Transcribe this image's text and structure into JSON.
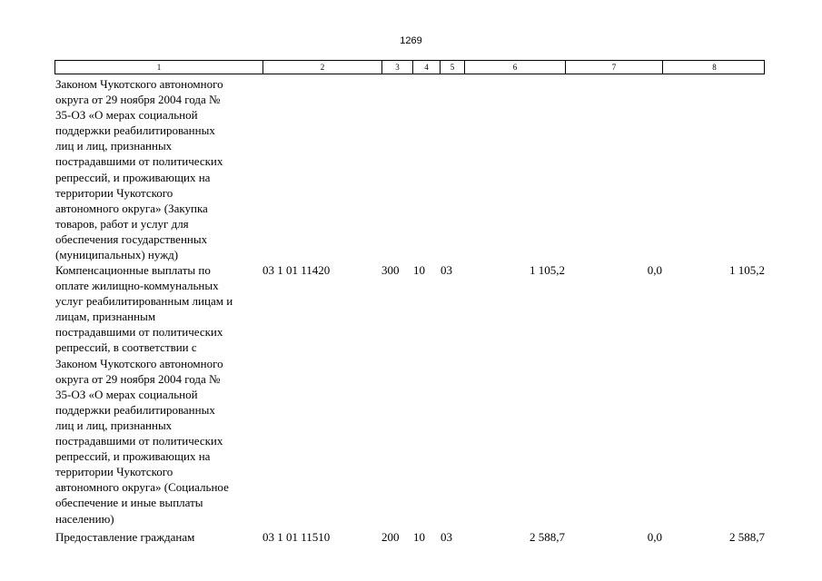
{
  "page_number": "1269",
  "columns": [
    "1",
    "2",
    "3",
    "4",
    "5",
    "6",
    "7",
    "8"
  ],
  "rows": [
    {
      "description": "Законом Чукотского автономного\nокруга от 29 ноября 2004 года №\n35-ОЗ «О мерах социальной\nподдержки реабилитированных\nлиц и лиц, признанных\nпострадавшими от политических\nрепрессий, и проживающих на\nтерритории Чукотского\nавтономного округа» (Закупка\nтоваров, работ и услуг для\nобеспечения государственных\n(муниципальных) нужд)",
      "code": "",
      "vr": "",
      "rz": "",
      "pr": "",
      "sum1": "",
      "sum2": "",
      "sum3": ""
    },
    {
      "description": "Компенсационные выплаты по\nоплате жилищно-коммунальных\nуслуг реабилитированным лицам и\nлицам, признанным\nпострадавшими от политических\nрепрессий, в соответствии с\nЗаконом Чукотского автономного\nокруга от 29 ноября 2004 года №\n35-ОЗ «О мерах социальной\nподдержки реабилитированных\nлиц и лиц, признанных\nпострадавшими от политических\nрепрессий, и проживающих на\nтерритории Чукотского\nавтономного округа» (Социальное\nобеспечение и иные выплаты\nнаселению)",
      "code": "03 1 01 11420",
      "vr": "300",
      "rz": "10",
      "pr": "03",
      "sum1": "1 105,2",
      "sum2": "0,0",
      "sum3": "1 105,2"
    },
    {
      "description": "Предоставление гражданам",
      "code": "03 1 01 11510",
      "vr": "200",
      "rz": "10",
      "pr": "03",
      "sum1": "2 588,7",
      "sum2": "0,0",
      "sum3": "2 588,7"
    }
  ]
}
